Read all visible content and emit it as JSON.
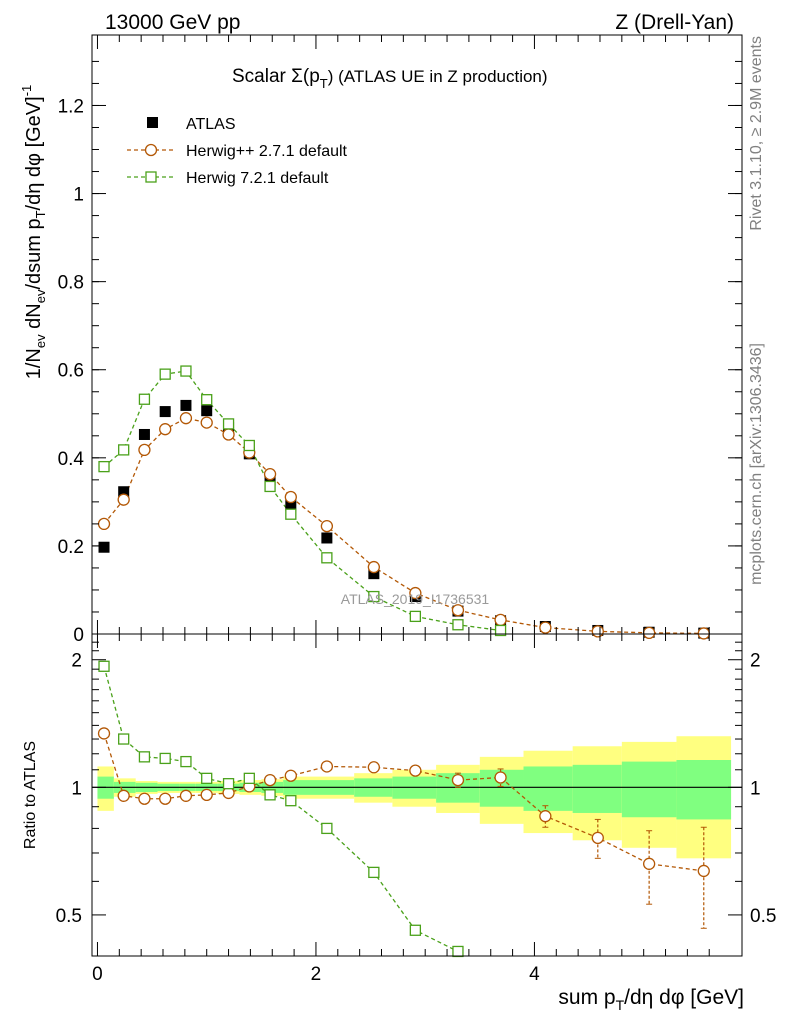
{
  "header": {
    "left": "13000 GeV pp",
    "right": "Z (Drell-Yan)"
  },
  "side_labels": {
    "rivet": "Rivet 3.1.10, ≥ 2.9M events",
    "mcplots": "mcplots.cern.ch [arXiv:1306.3436]"
  },
  "chart_data": [
    {
      "type": "scatter",
      "panel": "main",
      "title": "Scalar Σ(p_T) (ATLAS UE in Z production)",
      "title_parts": {
        "prefix": "Scalar ",
        "sigma": "Σ(p",
        "sub": "T",
        "suffix": ") (ATLAS UE in Z production)"
      },
      "watermark": "ATLAS_2019_I1736531",
      "xlabel": "sum p_T/dη dφ [GeV]",
      "xlabel_parts": {
        "prefix": "sum p",
        "sub": "T",
        "suffix": "/dη dφ [GeV]"
      },
      "ylabel": "1/N_ev dN_ev/dsum p_T/dη dφ [GeV]^-1",
      "ylabel_parts": {
        "a": "1/N",
        "a_sub": "ev",
        "b": " dN",
        "b_sub": "ev",
        "c": "/dsum p",
        "c_sub": "T",
        "d": "/dη dφ  [GeV]",
        "d_sup": "-1"
      },
      "xlim": [
        -0.05,
        5.9
      ],
      "ylim": [
        0,
        1.36
      ],
      "y_ticks": [
        0,
        0.2,
        0.4,
        0.6,
        0.8,
        1,
        1.2
      ],
      "y_tick_labels": [
        "0",
        "0.2",
        "0.4",
        "0.6",
        "0.8",
        "1",
        "1.2"
      ],
      "legend_position": "top-left",
      "series": [
        {
          "name": "ATLAS",
          "marker": "filled-square",
          "color": "#000000",
          "x": [
            0.06,
            0.24,
            0.43,
            0.62,
            0.81,
            1.0,
            1.2,
            1.39,
            1.58,
            1.77,
            2.1,
            2.53,
            2.91,
            3.3,
            3.69,
            4.1,
            4.58,
            5.05,
            5.55
          ],
          "values": [
            0.197,
            0.323,
            0.453,
            0.505,
            0.519,
            0.507,
            0.469,
            0.409,
            0.35,
            0.293,
            0.218,
            0.137,
            0.085,
            0.052,
            0.03,
            0.017,
            0.008,
            0.004,
            0.002
          ]
        },
        {
          "name": "Herwig++ 2.7.1 default",
          "marker": "open-circle",
          "color": "#b35806",
          "x": [
            0.06,
            0.24,
            0.43,
            0.62,
            0.81,
            1.0,
            1.2,
            1.39,
            1.58,
            1.77,
            2.1,
            2.53,
            2.91,
            3.3,
            3.69,
            4.1,
            4.58,
            5.05,
            5.55
          ],
          "values": [
            0.25,
            0.305,
            0.418,
            0.465,
            0.49,
            0.48,
            0.453,
            0.412,
            0.363,
            0.311,
            0.245,
            0.152,
            0.093,
            0.054,
            0.032,
            0.0145,
            0.006,
            0.0026,
            0.0013
          ]
        },
        {
          "name": "Herwig 7.2.1 default",
          "marker": "open-square",
          "color": "#4aa11a",
          "x": [
            0.06,
            0.24,
            0.43,
            0.62,
            0.81,
            1.0,
            1.2,
            1.39,
            1.58,
            1.77,
            2.1,
            2.53,
            2.91,
            3.3,
            3.69
          ],
          "values": [
            0.38,
            0.418,
            0.533,
            0.59,
            0.597,
            0.532,
            0.477,
            0.428,
            0.335,
            0.272,
            0.173,
            0.085,
            0.04,
            0.021,
            0.008
          ]
        }
      ]
    },
    {
      "type": "scatter",
      "panel": "ratio",
      "ylabel": "Ratio to ATLAS",
      "xlim": [
        -0.05,
        5.9
      ],
      "ylim": [
        0.4,
        2.3
      ],
      "y_scale": "log",
      "y_ticks": [
        0.5,
        1,
        2
      ],
      "y_tick_labels": [
        "0.5",
        "1",
        "2"
      ],
      "x_ticks": [
        0,
        2,
        4
      ],
      "x_tick_labels": [
        "0",
        "2",
        "4"
      ],
      "reference": 1,
      "bands": {
        "edges": [
          0,
          0.15,
          0.35,
          0.55,
          0.75,
          0.9,
          1.1,
          1.3,
          1.5,
          1.7,
          2.35,
          2.7,
          3.1,
          3.5,
          3.9,
          4.35,
          4.8,
          5.3,
          5.8
        ],
        "outer_colors": [
          "#ffff80",
          "#80ff80"
        ],
        "outer_half_width": [
          0.12,
          0.05,
          0.035,
          0.03,
          0.03,
          0.03,
          0.035,
          0.04,
          0.045,
          0.06,
          0.08,
          0.1,
          0.13,
          0.18,
          0.22,
          0.25,
          0.28,
          0.32
        ],
        "inner_half_width": [
          0.06,
          0.03,
          0.025,
          0.02,
          0.02,
          0.02,
          0.02,
          0.025,
          0.03,
          0.04,
          0.05,
          0.06,
          0.08,
          0.1,
          0.12,
          0.13,
          0.15,
          0.16
        ]
      },
      "series": [
        {
          "name": "Herwig++ 2.7.1 default",
          "marker": "open-circle",
          "color": "#b35806",
          "x": [
            0.06,
            0.24,
            0.43,
            0.62,
            0.81,
            1.0,
            1.2,
            1.39,
            1.58,
            1.77,
            2.1,
            2.53,
            2.91,
            3.3,
            3.69,
            4.1,
            4.58,
            5.05,
            5.55
          ],
          "values": [
            1.34,
            0.955,
            0.94,
            0.94,
            0.955,
            0.96,
            0.97,
            1.005,
            1.04,
            1.065,
            1.12,
            1.115,
            1.095,
            1.04,
            1.055,
            0.855,
            0.76,
            0.66,
            0.635
          ],
          "err": [
            0.02,
            0.01,
            0.01,
            0.01,
            0.01,
            0.01,
            0.01,
            0.01,
            0.01,
            0.01,
            0.01,
            0.015,
            0.02,
            0.04,
            0.05,
            0.05,
            0.08,
            0.13,
            0.17
          ]
        },
        {
          "name": "Herwig 7.2.1 default",
          "marker": "open-square",
          "color": "#4aa11a",
          "x": [
            0.06,
            0.24,
            0.43,
            0.62,
            0.81,
            1.0,
            1.2,
            1.39,
            1.58,
            1.77,
            2.1,
            2.53,
            2.91,
            3.3
          ],
          "values": [
            1.93,
            1.3,
            1.18,
            1.17,
            1.15,
            1.05,
            1.02,
            1.05,
            0.96,
            0.93,
            0.8,
            0.63,
            0.46,
            0.41
          ],
          "err": [
            0.02,
            0.01,
            0.01,
            0.01,
            0.01,
            0.01,
            0.01,
            0.01,
            0.01,
            0.01,
            0.01,
            0.015,
            0.02,
            0.02
          ]
        }
      ]
    }
  ]
}
